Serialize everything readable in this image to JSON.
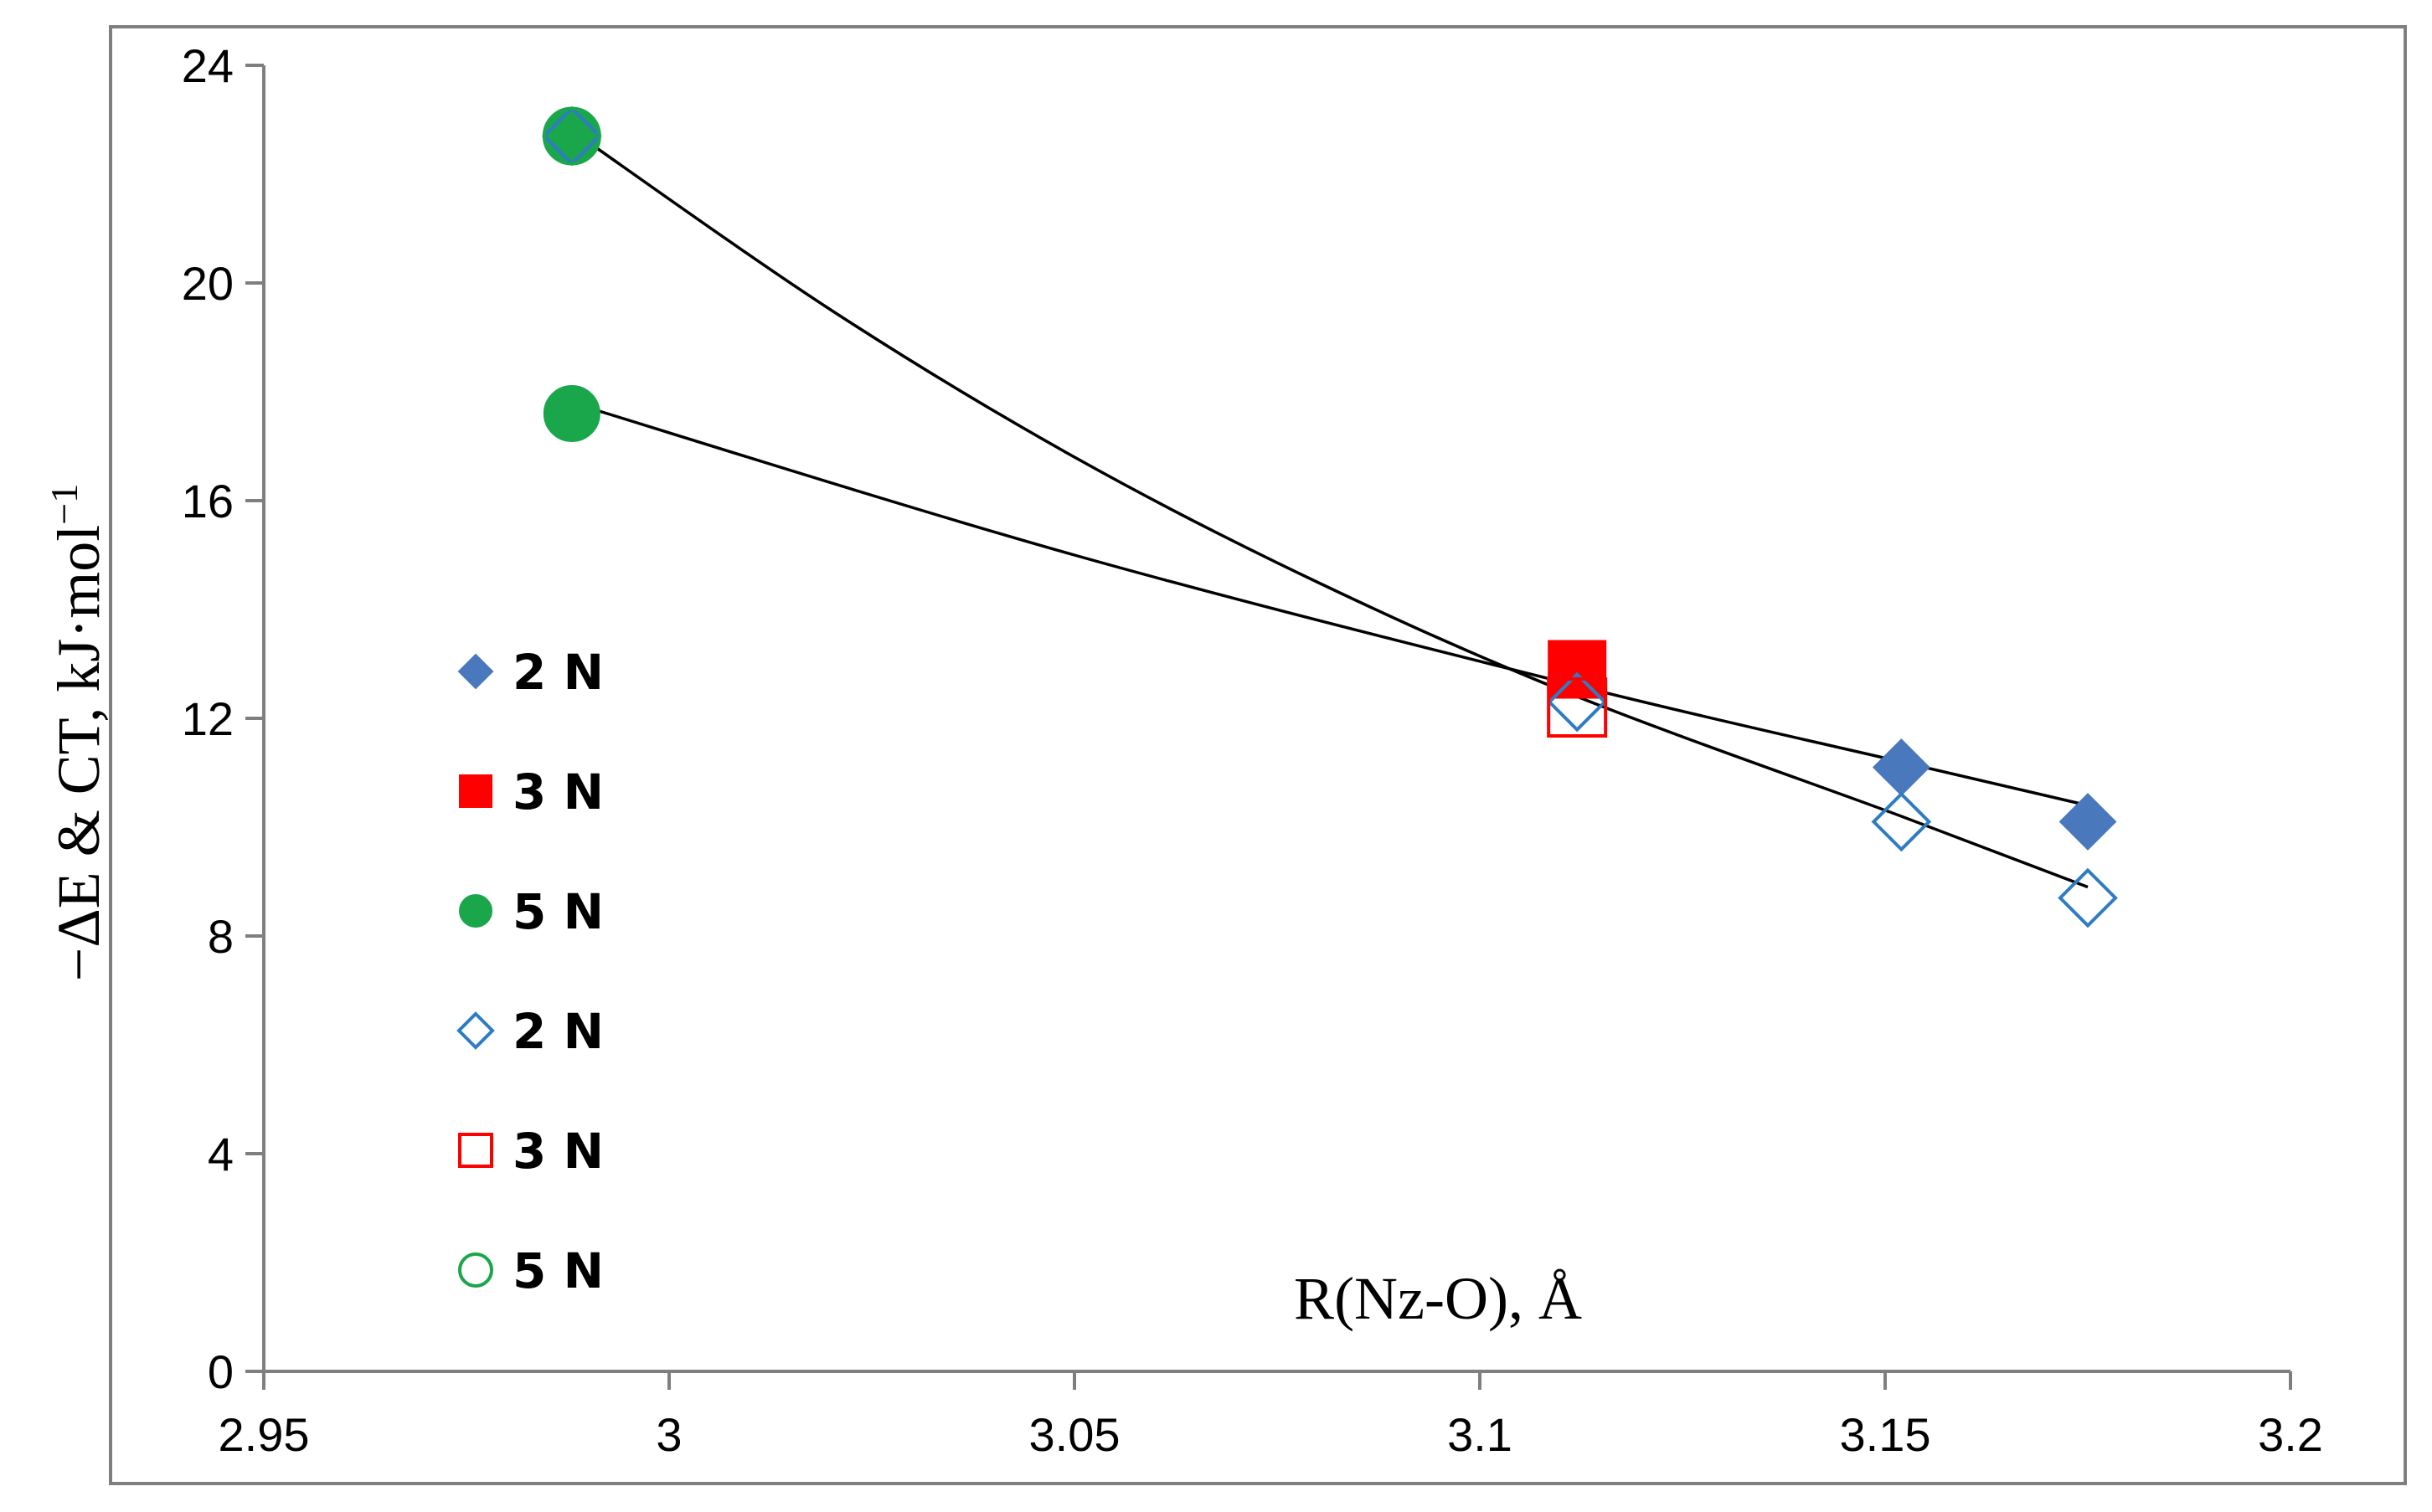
{
  "chart_data": {
    "type": "scatter",
    "title": "",
    "xlabel": "R(Nz-O), Å",
    "ylabel": "−ΔE & CT, kJ·mol",
    "ylabel_sup": "−1",
    "xlim": [
      2.95,
      3.2
    ],
    "ylim": [
      0,
      24
    ],
    "x_ticks": [
      2.95,
      3.0,
      3.05,
      3.1,
      3.15,
      3.2
    ],
    "x_tick_labels": [
      "2.95",
      "3",
      "3.05",
      "3.1",
      "3.15",
      "3.2"
    ],
    "y_ticks": [
      0,
      4,
      8,
      12,
      16,
      20,
      24
    ],
    "y_tick_labels": [
      "0",
      "4",
      "8",
      "12",
      "16",
      "20",
      "24"
    ],
    "grid": false,
    "legend_position": "left",
    "series": [
      {
        "name": "2 N",
        "marker": "diamond",
        "filled": true,
        "color": "#4a78bd",
        "points": [
          {
            "x": 3.152,
            "y": 11.1
          },
          {
            "x": 3.175,
            "y": 10.1
          }
        ]
      },
      {
        "name": "3 N",
        "marker": "square",
        "filled": true,
        "color": "#ff0000",
        "points": [
          {
            "x": 3.112,
            "y": 12.9
          }
        ]
      },
      {
        "name": "5 N",
        "marker": "circle",
        "filled": true,
        "color": "#1aa64a",
        "points": [
          {
            "x": 2.988,
            "y": 17.6
          },
          {
            "x": 2.988,
            "y": 22.7
          }
        ]
      },
      {
        "name": "2 N",
        "marker": "diamond",
        "filled": false,
        "color": "#2e7cc4",
        "points": [
          {
            "x": 3.112,
            "y": 12.3
          },
          {
            "x": 3.152,
            "y": 10.1
          },
          {
            "x": 3.175,
            "y": 8.7
          },
          {
            "x": 2.988,
            "y": 22.7
          }
        ]
      },
      {
        "name": "3 N",
        "marker": "square",
        "filled": false,
        "color": "#ff0000",
        "points": [
          {
            "x": 3.112,
            "y": 12.2
          }
        ]
      },
      {
        "name": "5 N",
        "marker": "circle",
        "filled": false,
        "color": "#1aa64a",
        "points": [
          {
            "x": 2.988,
            "y": 22.7
          }
        ]
      }
    ],
    "trendlines": [
      {
        "kind": "fit-through",
        "points": [
          {
            "x": 2.988,
            "y": 17.8
          },
          {
            "x": 3.05,
            "y": 15.0
          },
          {
            "x": 3.112,
            "y": 12.6
          },
          {
            "x": 3.152,
            "y": 11.2
          },
          {
            "x": 3.175,
            "y": 10.4
          }
        ]
      },
      {
        "kind": "fit-through",
        "points": [
          {
            "x": 2.988,
            "y": 22.8
          },
          {
            "x": 3.02,
            "y": 19.5
          },
          {
            "x": 3.05,
            "y": 16.8
          },
          {
            "x": 3.08,
            "y": 14.5
          },
          {
            "x": 3.112,
            "y": 12.4
          },
          {
            "x": 3.152,
            "y": 10.2
          },
          {
            "x": 3.175,
            "y": 8.9
          }
        ]
      }
    ]
  }
}
